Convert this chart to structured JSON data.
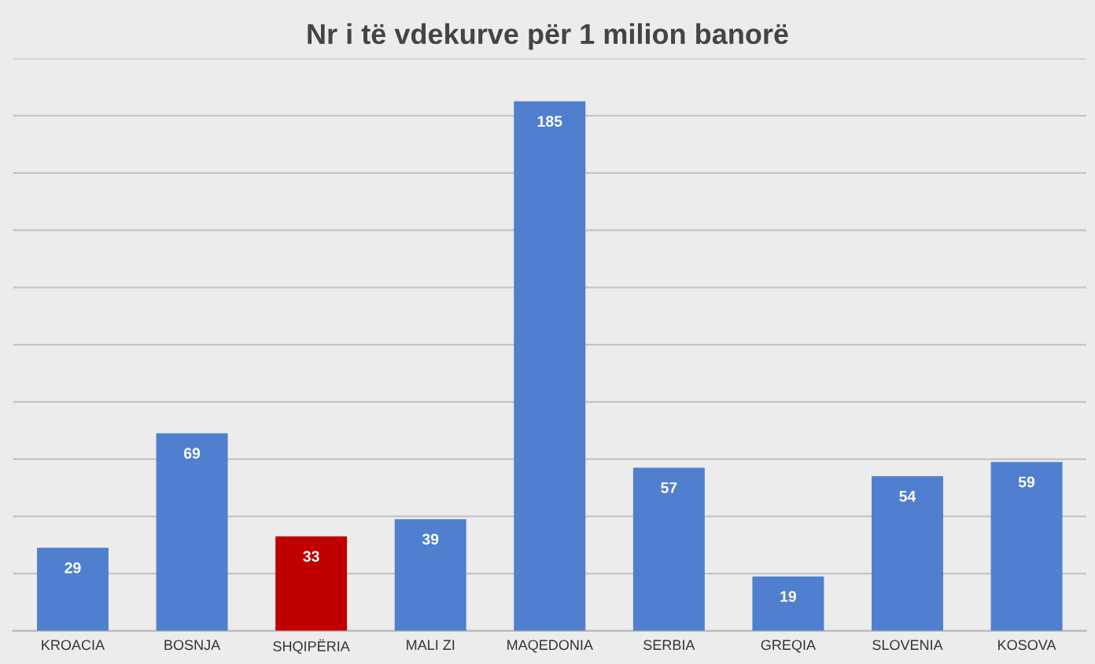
{
  "chart_data": {
    "type": "bar",
    "title": "Nr i të vdekurve për 1 milion banorë",
    "categories": [
      "KROACIA",
      "BOSNJA",
      "SHQIPËRIA",
      "MALI ZI",
      "MAQEDONIA",
      "SERBIA",
      "GREQIA",
      "SLOVENIA",
      "KOSOVA"
    ],
    "values": [
      29,
      69,
      33,
      39,
      185,
      57,
      19,
      54,
      59
    ],
    "colors": [
      "#4f7fce",
      "#4f7fce",
      "#c00000",
      "#4f7fce",
      "#4f7fce",
      "#4f7fce",
      "#4f7fce",
      "#4f7fce",
      "#4f7fce"
    ],
    "ylim": [
      0,
      200
    ],
    "yticks": [
      {
        "value": 0,
        "label": null
      },
      {
        "value": 20,
        "label": null
      },
      {
        "value": 40,
        "label": null
      },
      {
        "value": 60,
        "label": null
      },
      {
        "value": 80,
        "label": null
      },
      {
        "value": 100,
        "label": null
      },
      {
        "value": 120,
        "label": null
      },
      {
        "value": 140,
        "label": null
      },
      {
        "value": 160,
        "label": null
      },
      {
        "value": 180,
        "label": null
      },
      {
        "value": 200,
        "label": null
      }
    ],
    "grid": "y",
    "data_labels": true,
    "tick_labels": "x"
  }
}
